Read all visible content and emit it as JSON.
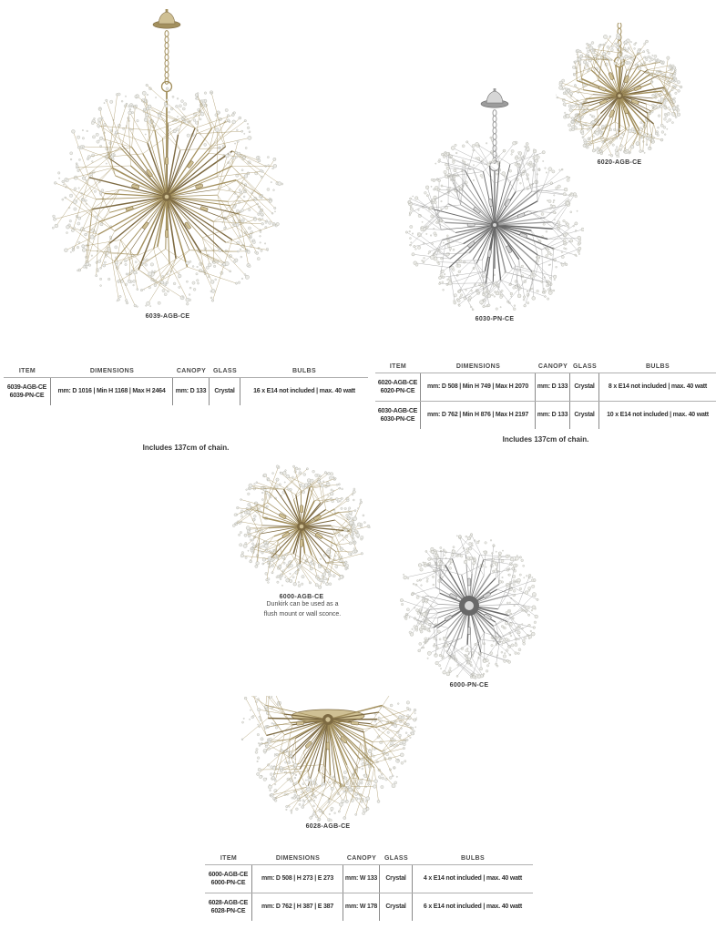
{
  "document": {
    "background": "#ffffff"
  },
  "colors": {
    "brass": "#a3905e",
    "brass_dark": "#7d6a42",
    "brass_light": "#cfc094",
    "nickel": "#9c9c9c",
    "nickel_dark": "#686868",
    "nickel_light": "#d6d6d6",
    "crystal": "#ebebe7",
    "crystal_stroke": "#b8b8b0",
    "text_dark": "#2f2f2f",
    "table_rule": "#b0b0b0",
    "table_divider": "#8a8a8a"
  },
  "labels": {
    "p6039": "6039-AGB-CE",
    "p6020": "6020-AGB-CE",
    "p6030": "6030-PN-CE",
    "p6000_agb": "6000-AGB-CE",
    "p6000_pn": "6000-PN-CE",
    "p6028": "6028-AGB-CE"
  },
  "captions": {
    "chain_note_left": "Includes 137cm of chain.",
    "chain_note_right": "Includes 137cm of chain.",
    "flush_note_line1": "Dunkirk can be used as a",
    "flush_note_line2": "flush mount or wall sconce."
  },
  "tables": [
    {
      "headers": [
        "ITEM",
        "DIMENSIONS",
        "CANOPY",
        "GLASS",
        "BULBS"
      ],
      "rows": [
        {
          "item": [
            "6039-AGB-CE",
            "6039-PN-CE"
          ],
          "dimensions": "mm: D 1016 | Min H 1168 | Max H 2464",
          "canopy": "mm: D 133",
          "glass": "Crystal",
          "bulbs": "16 x E14 not included | max. 40 watt"
        }
      ]
    },
    {
      "headers": [
        "ITEM",
        "DIMENSIONS",
        "CANOPY",
        "GLASS",
        "BULBS"
      ],
      "rows": [
        {
          "item": [
            "6020-AGB-CE",
            "6020-PN-CE"
          ],
          "dimensions": "mm: D 508 | Min H 749 | Max H 2070",
          "canopy": "mm: D 133",
          "glass": "Crystal",
          "bulbs": "8 x E14 not included | max. 40 watt"
        },
        {
          "item": [
            "6030-AGB-CE",
            "6030-PN-CE"
          ],
          "dimensions": "mm: D 762 | Min H 876 | Max H 2197",
          "canopy": "mm: D 133",
          "glass": "Crystal",
          "bulbs": "10 x E14 not included | max. 40 watt"
        }
      ]
    },
    {
      "headers": [
        "ITEM",
        "DIMENSIONS",
        "CANOPY",
        "GLASS",
        "BULBS"
      ],
      "rows": [
        {
          "item": [
            "6000-AGB-CE",
            "6000-PN-CE"
          ],
          "dimensions": "mm: D 508 | H 273 | E 273",
          "canopy": "mm: W 133",
          "glass": "Crystal",
          "bulbs": "4 x E14 not included | max. 40 watt"
        },
        {
          "item": [
            "6028-AGB-CE",
            "6028-PN-CE"
          ],
          "dimensions": "mm: D 762 | H 387 | E 387",
          "canopy": "mm: W 178",
          "glass": "Crystal",
          "bulbs": "6 x E14 not included | max. 40 watt"
        }
      ]
    }
  ]
}
